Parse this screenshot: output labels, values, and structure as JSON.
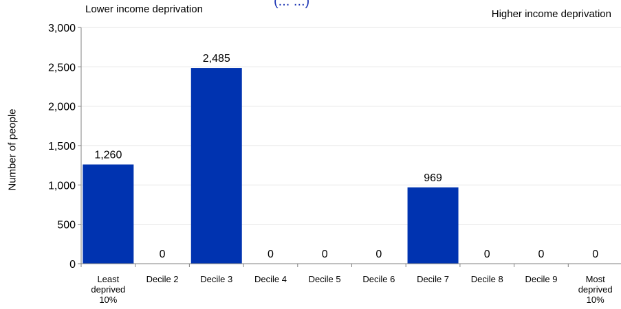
{
  "chart_data": {
    "type": "bar",
    "title_fragment": "(... ...)",
    "annotations": {
      "left": "Lower income deprivation",
      "right": "Higher income deprivation"
    },
    "ylabel": "Number of people",
    "xlabel": "",
    "ylim": [
      0,
      3000
    ],
    "yticks": [
      "0",
      "500",
      "1,000",
      "1,500",
      "2,000",
      "2,500",
      "3,000"
    ],
    "categories": [
      "Least deprived 10%",
      "Decile 2",
      "Decile 3",
      "Decile 4",
      "Decile 5",
      "Decile 6",
      "Decile 7",
      "Decile 8",
      "Decile 9",
      "Most deprived 10%"
    ],
    "category_lines": [
      [
        "Least",
        "deprived",
        "10%"
      ],
      [
        "Decile 2"
      ],
      [
        "Decile 3"
      ],
      [
        "Decile 4"
      ],
      [
        "Decile 5"
      ],
      [
        "Decile 6"
      ],
      [
        "Decile 7"
      ],
      [
        "Decile 8"
      ],
      [
        "Decile 9"
      ],
      [
        "Most",
        "deprived",
        "10%"
      ]
    ],
    "values": [
      1260,
      0,
      2485,
      0,
      0,
      0,
      969,
      0,
      0,
      0
    ],
    "value_labels": [
      "1,260",
      "0",
      "2,485",
      "0",
      "0",
      "0",
      "969",
      "0",
      "0",
      "0"
    ],
    "bar_color": "#0033b0",
    "grid": true,
    "legend": "none"
  }
}
